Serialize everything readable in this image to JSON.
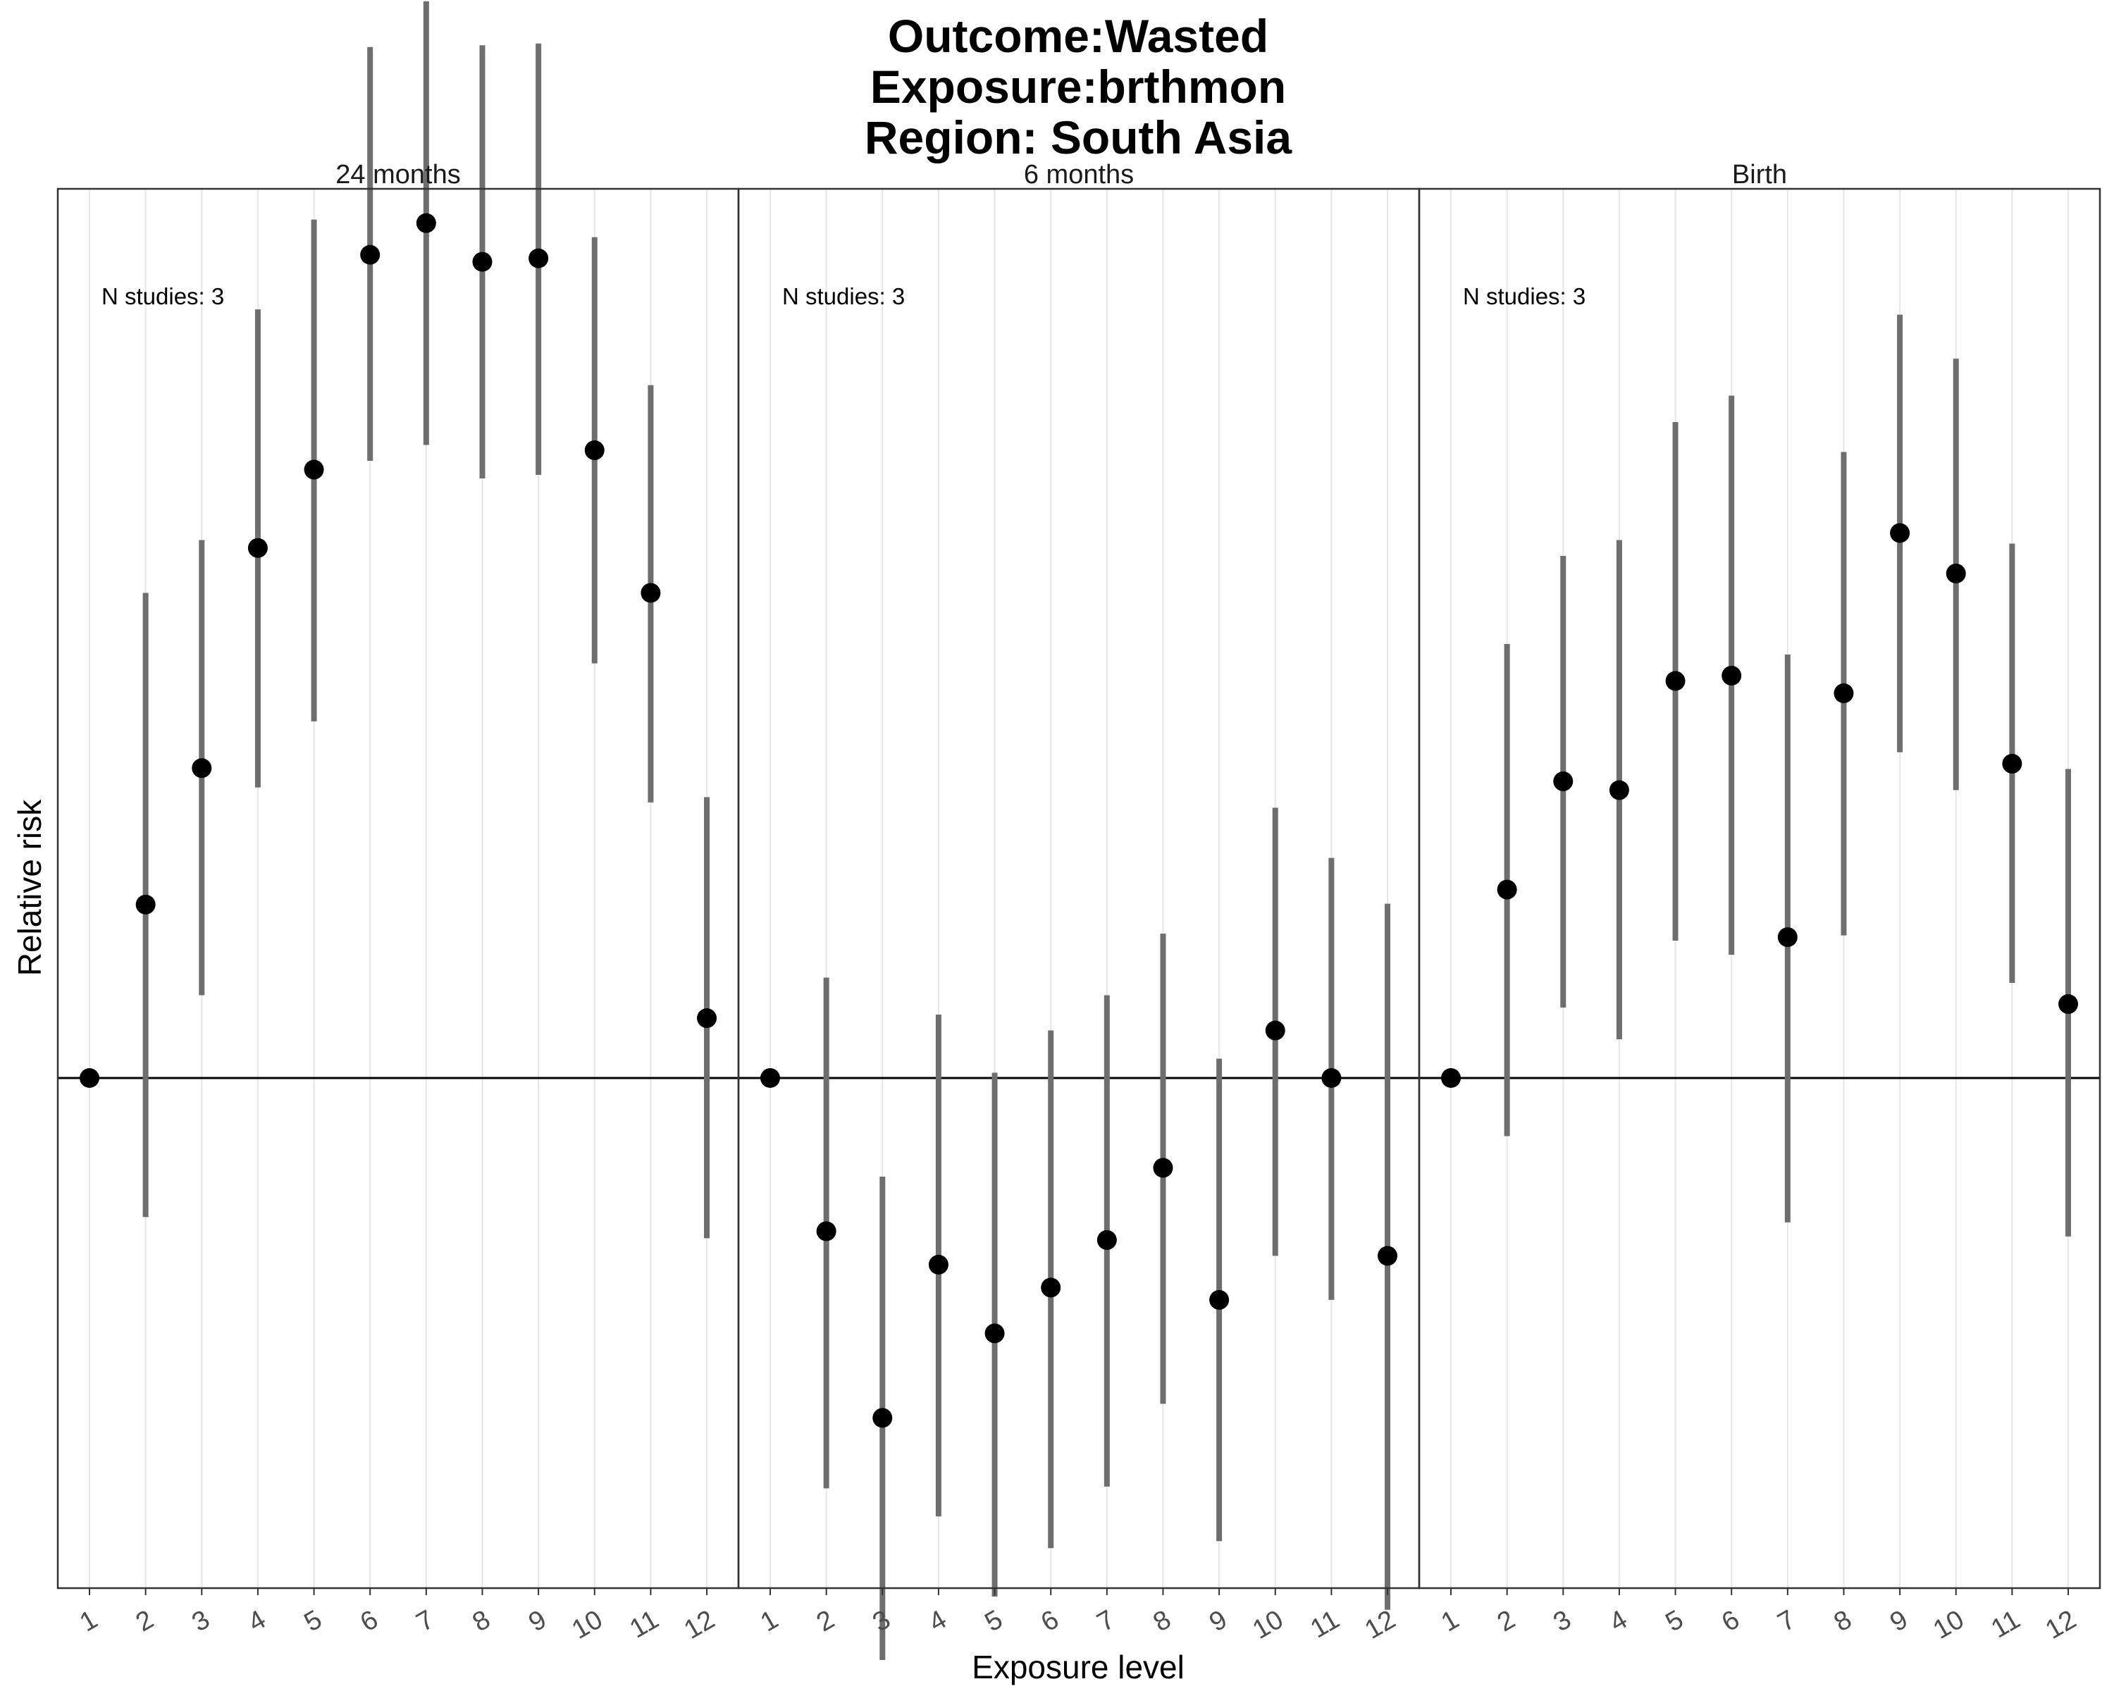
{
  "title_lines": [
    "Outcome:Wasted",
    "Exposure:brthmon",
    "Region: South Asia"
  ],
  "chart_data": {
    "type": "scatter",
    "subtype": "pointrange",
    "xlabel": "Exposure level",
    "ylabel": "Relative risk",
    "categories": [
      "1",
      "2",
      "3",
      "4",
      "5",
      "6",
      "7",
      "8",
      "9",
      "10",
      "11",
      "12"
    ],
    "y_tick_labels_shown": false,
    "reference_line": 0,
    "grid": "vertical",
    "colors": {
      "point": "#000000",
      "interval": "#6e6e6e",
      "grid": "#e6e6e6",
      "frame": "#333333"
    },
    "panels": [
      {
        "label": "24 months",
        "annotation": "N studies: 3",
        "estimates": [
          0,
          0.197,
          0.352,
          0.602,
          0.691,
          0.935,
          0.971,
          0.927,
          0.931,
          0.713,
          0.551,
          0.068
        ],
        "lower": [
          0,
          -0.158,
          0.094,
          0.33,
          0.405,
          0.701,
          0.719,
          0.681,
          0.685,
          0.471,
          0.313,
          -0.182
        ],
        "upper": [
          0,
          0.551,
          0.611,
          0.873,
          0.975,
          1.171,
          1.223,
          1.173,
          1.175,
          0.955,
          0.787,
          0.319
        ]
      },
      {
        "label": "6 months",
        "annotation": "N studies: 3",
        "estimates": [
          0,
          -0.174,
          -0.386,
          -0.212,
          -0.29,
          -0.238,
          -0.184,
          -0.102,
          -0.252,
          0.054,
          0,
          -0.202
        ],
        "lower": [
          0,
          -0.466,
          -0.661,
          -0.498,
          -0.589,
          -0.534,
          -0.464,
          -0.37,
          -0.526,
          -0.202,
          -0.252,
          -0.604
        ],
        "upper": [
          0,
          0.114,
          -0.112,
          0.072,
          0.006,
          0.054,
          0.094,
          0.164,
          0.022,
          0.307,
          0.25,
          0.198
        ]
      },
      {
        "label": "Birth",
        "annotation": "N studies: 3",
        "estimates": [
          0,
          0.214,
          0.337,
          0.327,
          0.451,
          0.457,
          0.16,
          0.437,
          0.619,
          0.573,
          0.357,
          0.084
        ],
        "lower": [
          0,
          -0.066,
          0.08,
          0.044,
          0.156,
          0.14,
          -0.164,
          0.162,
          0.37,
          0.327,
          0.108,
          -0.18
        ],
        "upper": [
          0,
          0.493,
          0.593,
          0.611,
          0.745,
          0.775,
          0.481,
          0.711,
          0.867,
          0.817,
          0.607,
          0.351
        ]
      }
    ]
  }
}
